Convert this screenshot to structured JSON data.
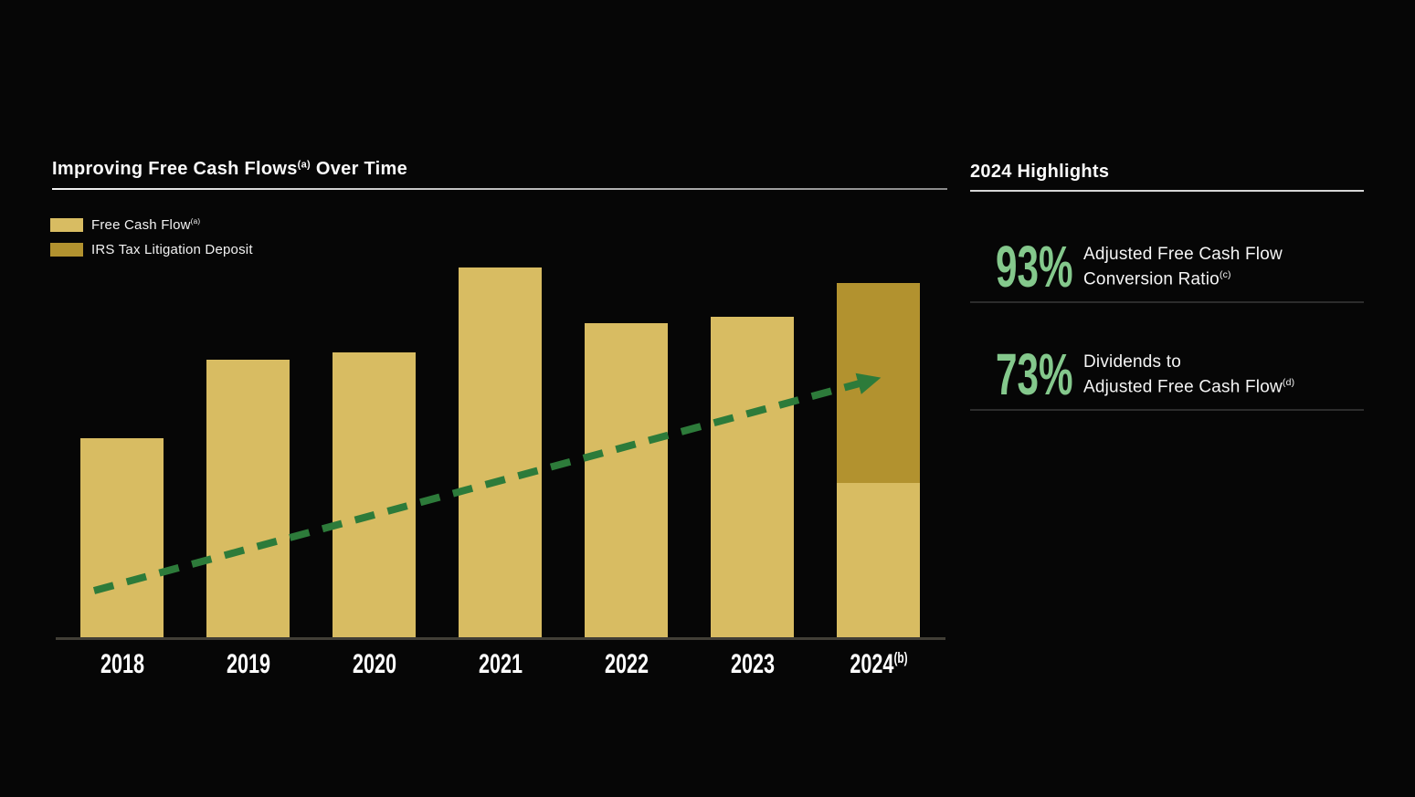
{
  "page": {
    "background_color": "#060606",
    "text_color": "#fafafa"
  },
  "chart_panel": {
    "title": {
      "text": "Improving Free Cash Flows",
      "superscript": "(a)",
      "suffix": " Over Time"
    },
    "legend": [
      {
        "label": "Free Cash Flow",
        "superscript": "(a)",
        "color": "#d8bc62"
      },
      {
        "label": "IRS Tax Litigation Deposit",
        "superscript": "",
        "color": "#b2922f"
      }
    ]
  },
  "highlights_panel": {
    "title": "2024 Highlights",
    "accent_green": "#84c88c",
    "items": [
      {
        "value": "93%",
        "line1": "Adjusted Free Cash Flow",
        "line2": "Conversion Ratio",
        "superscript": "(c)"
      },
      {
        "value": "73%",
        "line1": "Dividends to",
        "line2": "Adjusted Free Cash Flow",
        "superscript": "(d)"
      }
    ]
  },
  "chart_data": {
    "type": "bar",
    "stacked": true,
    "title": "Improving Free Cash Flows(a) Over Time",
    "xlabel": "",
    "ylabel": "",
    "axis_labels_shown": false,
    "value_unit": "relative height (no numeric y-axis shown in chart)",
    "categories": [
      "2018",
      "2019",
      "2020",
      "2021",
      "2022",
      "2023",
      "2024"
    ],
    "category_superscripts": [
      "",
      "",
      "",
      "",
      "",
      "",
      "(b)"
    ],
    "series": [
      {
        "name": "Free Cash Flow",
        "color": "#d8bc62",
        "values": [
          220,
          306,
          314,
          407,
          346,
          353,
          171
        ]
      },
      {
        "name": "IRS Tax Litigation Deposit",
        "color": "#b2922f",
        "values": [
          0,
          0,
          0,
          0,
          0,
          0,
          219
        ]
      }
    ],
    "trend_arrow": {
      "present": true,
      "style": "dashed",
      "color": "#2d7b3a",
      "direction": "rising left to right"
    },
    "legend_position": "top-left",
    "grid": false
  }
}
